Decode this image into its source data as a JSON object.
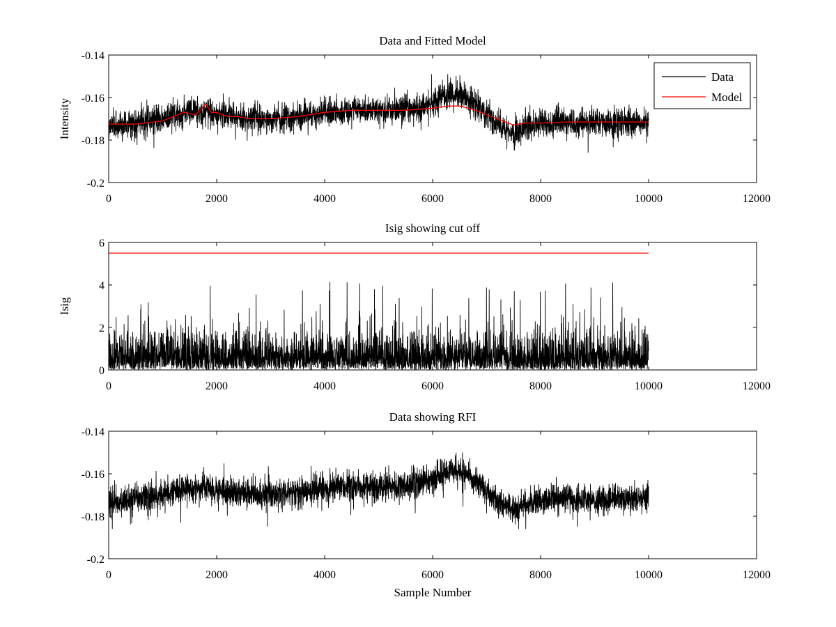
{
  "chart_data": [
    {
      "type": "line",
      "title": "Data and Fitted Model",
      "xlabel": "",
      "ylabel": "Intensity",
      "xlim": [
        0,
        12000
      ],
      "ylim": [
        -0.2,
        -0.14
      ],
      "x_ticks": [
        0,
        2000,
        4000,
        6000,
        8000,
        10000,
        12000
      ],
      "y_ticks": [
        -0.2,
        -0.18,
        -0.16,
        -0.14
      ],
      "x_tick_labels": [
        "0",
        "2000",
        "4000",
        "6000",
        "8000",
        "10000",
        "12000"
      ],
      "y_tick_labels": [
        "-0.2",
        "-0.18",
        "-0.16",
        "-0.14"
      ],
      "grid": false,
      "legend": {
        "position": "top-right",
        "entries": [
          "Data",
          "Model"
        ]
      },
      "series": [
        {
          "name": "Data",
          "color": "#000000",
          "kind": "noise-band",
          "x_range": [
            0,
            10000
          ],
          "band_x": [
            0,
            500,
            1000,
            1400,
            1800,
            2200,
            2600,
            3000,
            3500,
            4000,
            4500,
            5000,
            5500,
            6000,
            6200,
            6500,
            6800,
            7000,
            7300,
            7500,
            7800,
            8200,
            8600,
            9000,
            9500,
            10000
          ],
          "band_center": [
            -0.173,
            -0.172,
            -0.17,
            -0.167,
            -0.167,
            -0.168,
            -0.17,
            -0.17,
            -0.169,
            -0.167,
            -0.166,
            -0.166,
            -0.166,
            -0.163,
            -0.159,
            -0.159,
            -0.163,
            -0.168,
            -0.174,
            -0.177,
            -0.174,
            -0.172,
            -0.172,
            -0.172,
            -0.172,
            -0.172
          ],
          "band_half_width": 0.006,
          "peak_max": -0.149,
          "peak_min": -0.186
        },
        {
          "name": "Model",
          "color": "#ff0000",
          "x": [
            0,
            500,
            1000,
            1200,
            1400,
            1600,
            1700,
            1800,
            1900,
            2000,
            2200,
            2400,
            2600,
            3000,
            3500,
            4000,
            4500,
            5000,
            5500,
            6000,
            6300,
            6500,
            6800,
            7000,
            7300,
            7500,
            7700,
            8000,
            8500,
            9000,
            9500,
            10000
          ],
          "y": [
            -0.1725,
            -0.1725,
            -0.171,
            -0.169,
            -0.167,
            -0.168,
            -0.166,
            -0.163,
            -0.167,
            -0.167,
            -0.169,
            -0.169,
            -0.17,
            -0.17,
            -0.169,
            -0.167,
            -0.166,
            -0.166,
            -0.166,
            -0.165,
            -0.164,
            -0.164,
            -0.166,
            -0.168,
            -0.171,
            -0.173,
            -0.172,
            -0.172,
            -0.1715,
            -0.1715,
            -0.1715,
            -0.1715
          ]
        }
      ]
    },
    {
      "type": "line",
      "title": "Isig showing cut off",
      "xlabel": "",
      "ylabel": "Isig",
      "xlim": [
        0,
        12000
      ],
      "ylim": [
        0,
        6
      ],
      "x_ticks": [
        0,
        2000,
        4000,
        6000,
        8000,
        10000,
        12000
      ],
      "y_ticks": [
        0,
        2,
        4,
        6
      ],
      "x_tick_labels": [
        "0",
        "2000",
        "4000",
        "6000",
        "8000",
        "10000",
        "12000"
      ],
      "y_tick_labels": [
        "0",
        "2",
        "4",
        "6"
      ],
      "grid": false,
      "series": [
        {
          "name": "Isig",
          "color": "#000000",
          "kind": "abs-noise",
          "x_range": [
            0,
            10000
          ],
          "typical_max": 2.0,
          "peak_max": 4.2
        },
        {
          "name": "Cut off",
          "color": "#ff0000",
          "x": [
            0,
            10000
          ],
          "y": [
            5.5,
            5.5
          ]
        }
      ]
    },
    {
      "type": "line",
      "title": "Data showing RFI",
      "xlabel": "Sample Number",
      "ylabel": "",
      "xlim": [
        0,
        12000
      ],
      "ylim": [
        -0.2,
        -0.14
      ],
      "x_ticks": [
        0,
        2000,
        4000,
        6000,
        8000,
        10000,
        12000
      ],
      "y_ticks": [
        -0.2,
        -0.18,
        -0.16,
        -0.14
      ],
      "x_tick_labels": [
        "0",
        "2000",
        "4000",
        "6000",
        "8000",
        "10000",
        "12000"
      ],
      "y_tick_labels": [
        "-0.2",
        "-0.18",
        "-0.16",
        "-0.14"
      ],
      "grid": false,
      "series": [
        {
          "name": "Data",
          "color": "#000000",
          "kind": "noise-band",
          "x_range": [
            0,
            10000
          ],
          "band_x": [
            0,
            500,
            1000,
            1400,
            1800,
            2200,
            2600,
            3000,
            3500,
            4000,
            4500,
            5000,
            5500,
            6000,
            6200,
            6500,
            6800,
            7000,
            7300,
            7500,
            7800,
            8200,
            8600,
            9000,
            9500,
            10000
          ],
          "band_center": [
            -0.173,
            -0.172,
            -0.17,
            -0.167,
            -0.167,
            -0.168,
            -0.17,
            -0.17,
            -0.169,
            -0.167,
            -0.166,
            -0.166,
            -0.166,
            -0.163,
            -0.159,
            -0.159,
            -0.163,
            -0.168,
            -0.174,
            -0.177,
            -0.174,
            -0.172,
            -0.172,
            -0.172,
            -0.172,
            -0.172
          ],
          "band_half_width": 0.006,
          "peak_max": -0.15,
          "peak_min": -0.186
        }
      ]
    }
  ]
}
